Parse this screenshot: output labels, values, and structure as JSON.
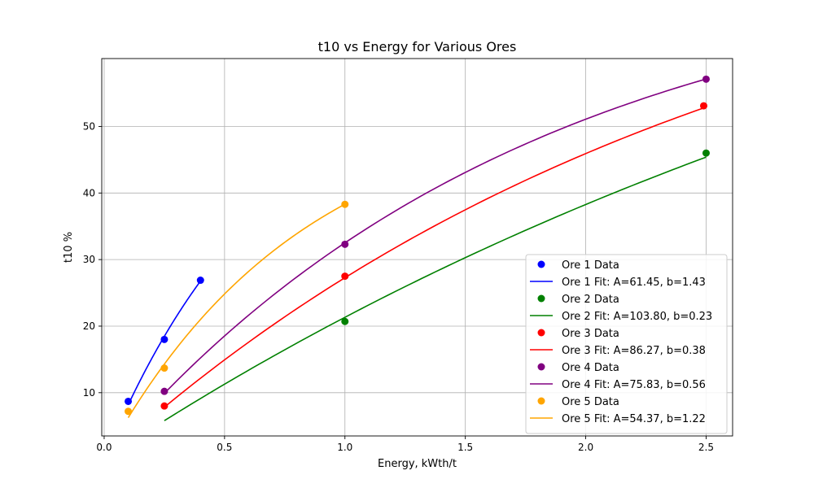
{
  "chart_data": {
    "type": "scatter",
    "title": "t10 vs Energy for Various Ores",
    "xlabel": "Energy, kWth/t",
    "ylabel": "t10 %",
    "xlim": [
      -0.01,
      2.61
    ],
    "ylim": [
      3.5,
      60.2
    ],
    "xticks": [
      0.0,
      0.5,
      1.0,
      1.5,
      2.0,
      2.5
    ],
    "yticks": [
      10,
      20,
      30,
      40,
      50
    ],
    "grid": true,
    "legend_position": "lower-right",
    "fit_model": "A*(1-exp(-b*E))",
    "series": [
      {
        "name": "Ore 1",
        "color": "#0000ff",
        "data_label": "Ore 1 Data",
        "fit_label": "Ore 1 Fit: A=61.45, b=1.43",
        "points": [
          [
            0.1,
            8.7
          ],
          [
            0.25,
            18.0
          ],
          [
            0.4,
            26.9
          ]
        ],
        "A": 61.45,
        "b": 1.43,
        "fit_range": [
          0.1,
          0.4
        ]
      },
      {
        "name": "Ore 2",
        "color": "#008000",
        "data_label": "Ore 2 Data",
        "fit_label": "Ore 2 Fit: A=103.80, b=0.23",
        "points": [
          [
            1.0,
            20.7
          ],
          [
            2.5,
            46.0
          ]
        ],
        "A": 103.8,
        "b": 0.23,
        "fit_range": [
          0.25,
          2.5
        ]
      },
      {
        "name": "Ore 3",
        "color": "#ff0000",
        "data_label": "Ore 3 Data",
        "fit_label": "Ore 3 Fit: A=86.27, b=0.38",
        "points": [
          [
            0.25,
            8.0
          ],
          [
            1.0,
            27.5
          ],
          [
            2.49,
            53.1
          ]
        ],
        "A": 86.27,
        "b": 0.38,
        "fit_range": [
          0.25,
          2.49
        ]
      },
      {
        "name": "Ore 4",
        "color": "#800080",
        "data_label": "Ore 4 Data",
        "fit_label": "Ore 4 Fit: A=75.83, b=0.56",
        "points": [
          [
            0.25,
            10.2
          ],
          [
            1.0,
            32.3
          ],
          [
            2.5,
            57.1
          ]
        ],
        "A": 75.83,
        "b": 0.56,
        "fit_range": [
          0.25,
          2.5
        ]
      },
      {
        "name": "Ore 5",
        "color": "#ffa500",
        "data_label": "Ore 5 Data",
        "fit_label": "Ore 5 Fit: A=54.37, b=1.22",
        "points": [
          [
            0.1,
            7.2
          ],
          [
            0.25,
            13.7
          ],
          [
            1.0,
            38.3
          ]
        ],
        "A": 54.37,
        "b": 1.22,
        "fit_range": [
          0.1,
          1.0
        ]
      }
    ]
  }
}
